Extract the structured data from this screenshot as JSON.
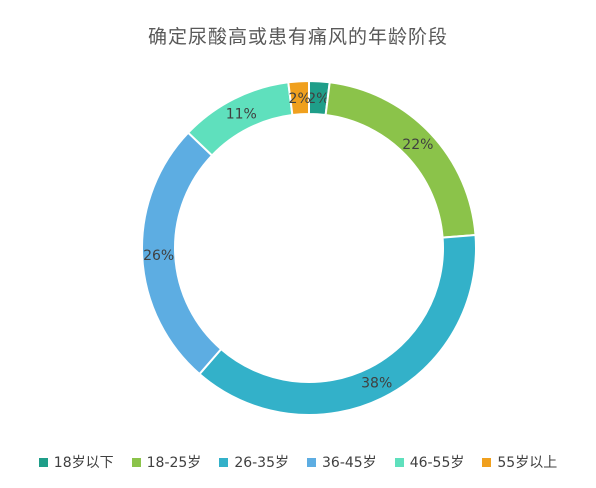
{
  "chart_data": {
    "type": "pie",
    "title": "确定尿酸高或患有痛风的年龄阶段",
    "categories": [
      "18岁以下",
      "18-25岁",
      "26-35岁",
      "36-45岁",
      "46-55岁",
      "55岁以上"
    ],
    "values": [
      2,
      22,
      38,
      26,
      11,
      2
    ],
    "value_labels": [
      "2%",
      "22%",
      "38%",
      "26%",
      "11%",
      "2%"
    ],
    "colors": [
      "#1f9e89",
      "#8bc34a",
      "#33b1c9",
      "#5dade2",
      "#5fe0bd",
      "#f0a01e"
    ],
    "donut": true,
    "legend_position": "bottom"
  }
}
